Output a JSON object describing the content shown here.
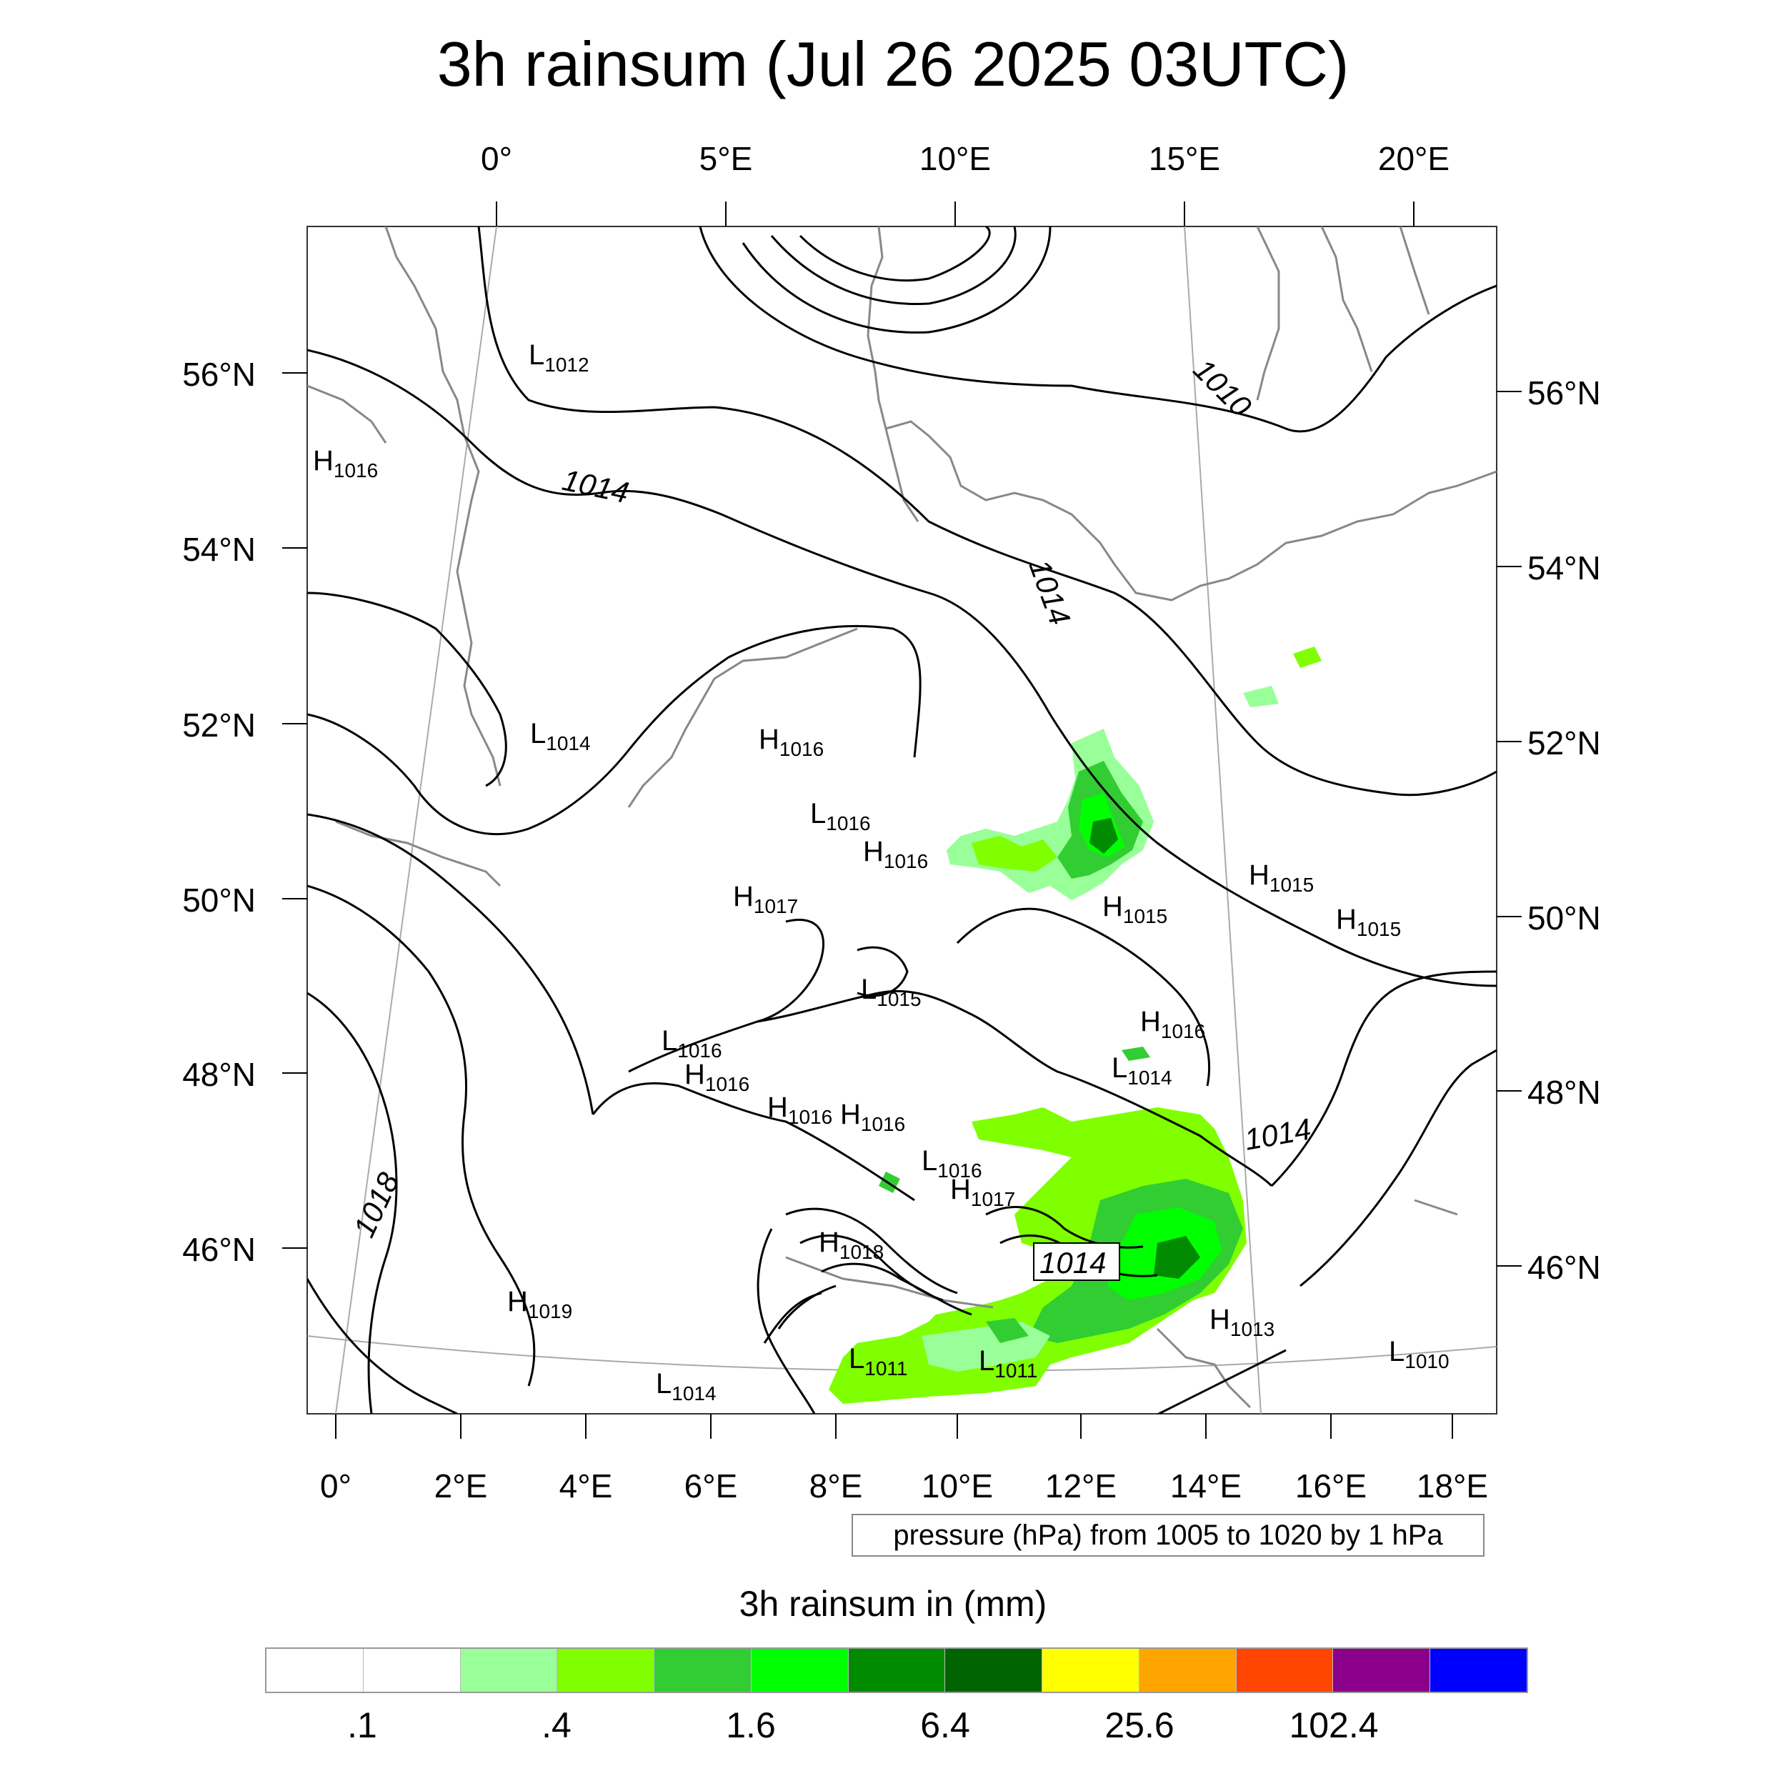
{
  "title": "3h rainsum (Jul 26 2025 03UTC)",
  "top_lon_labels": [
    "0°",
    "5°E",
    "10°E",
    "15°E",
    "20°E"
  ],
  "bottom_lon_labels": [
    "0°",
    "2°E",
    "4°E",
    "6°E",
    "8°E",
    "10°E",
    "12°E",
    "14°E",
    "16°E",
    "18°E"
  ],
  "left_lat_labels": [
    "56°N",
    "54°N",
    "52°N",
    "50°N",
    "48°N",
    "46°N"
  ],
  "right_lat_labels": [
    "56°N",
    "54°N",
    "52°N",
    "50°N",
    "48°N",
    "46°N"
  ],
  "pressure_centers": [
    {
      "l": "L",
      "v": "1012"
    },
    {
      "l": "H",
      "v": "1016"
    },
    {
      "l": "L",
      "v": "1014"
    },
    {
      "l": "H",
      "v": "1016"
    },
    {
      "l": "L",
      "v": "1016"
    },
    {
      "l": "H",
      "v": "1016"
    },
    {
      "l": "H",
      "v": "1017"
    },
    {
      "l": "H",
      "v": "1015"
    },
    {
      "l": "H",
      "v": "1015"
    },
    {
      "l": "H",
      "v": "1015"
    },
    {
      "l": "L",
      "v": "1015"
    },
    {
      "l": "H",
      "v": "1016"
    },
    {
      "l": "L",
      "v": "1016"
    },
    {
      "l": "H",
      "v": "1016"
    },
    {
      "l": "L",
      "v": "1014"
    },
    {
      "l": "H",
      "v": "1016"
    },
    {
      "l": "H",
      "v": "1016"
    },
    {
      "l": "L",
      "v": "1016"
    },
    {
      "l": "H",
      "v": "1017"
    },
    {
      "l": "H",
      "v": "1018"
    },
    {
      "l": "H",
      "v": "1019"
    },
    {
      "l": "L",
      "v": "1011"
    },
    {
      "l": "L",
      "v": "1011"
    },
    {
      "l": "H",
      "v": "1013"
    },
    {
      "l": "L",
      "v": "1014"
    },
    {
      "l": "L",
      "v": "1010"
    }
  ],
  "contour_labels": [
    "1014",
    "1010",
    "1014",
    "1014",
    "1018",
    "1014"
  ],
  "pressure_note": "pressure (hPa) from 1005 to 1020 by 1 hPa",
  "legend_title": "3h rainsum in (mm)",
  "colorbar": {
    "colors": [
      "#ffffff",
      "#ffffff",
      "#99ff99",
      "#7fff00",
      "#32cd32",
      "#00ff00",
      "#008b00",
      "#006400",
      "#ffff00",
      "#ffa500",
      "#ff4500",
      "#8b008b",
      "#0000ff"
    ],
    "labels": [
      ".1",
      ".4",
      "1.6",
      "6.4",
      "25.6",
      "102.4"
    ]
  }
}
